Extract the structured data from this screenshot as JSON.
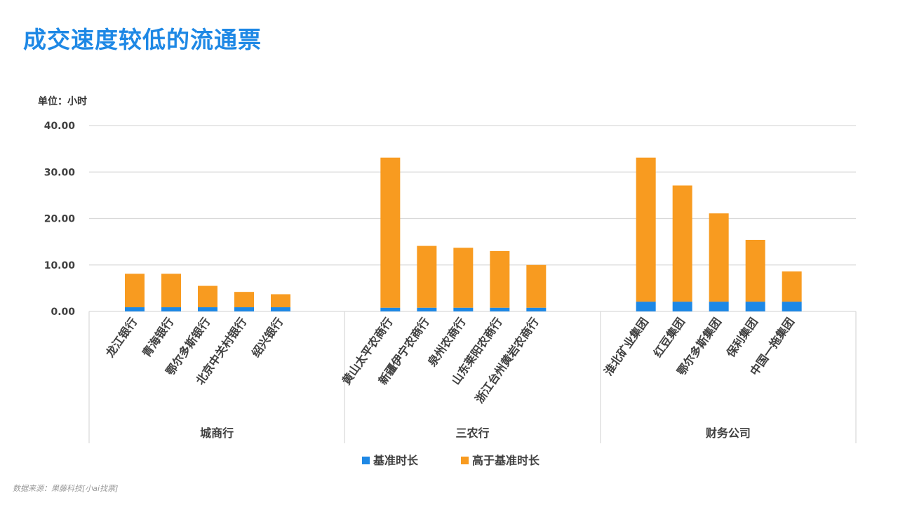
{
  "page": {
    "title": "成交速度较低的流通票",
    "unit_label": "单位：小时",
    "source_note": "数据来源：果藤科技[小ai找票]"
  },
  "colors": {
    "title": "#1e88e5",
    "base_series": "#1e88e5",
    "extra_series": "#f89b20",
    "grid": "#d9d9d9",
    "axis_text": "#404040"
  },
  "chart_data": {
    "type": "bar",
    "stacked": true,
    "ylim": [
      0,
      40
    ],
    "yticks": [
      "0.00",
      "10.00",
      "20.00",
      "30.00",
      "40.00"
    ],
    "ytick_values": [
      0,
      10,
      20,
      30,
      40
    ],
    "grid": true,
    "legend_position": "bottom",
    "groups": [
      {
        "name": "城商行",
        "categories": [
          "龙江银行",
          "青海银行",
          "鄂尔多斯银行",
          "北京中关村银行",
          "绍兴银行"
        ]
      },
      {
        "name": "三农行",
        "categories": [
          "黄山太平农商行",
          "新疆伊宁农商行",
          "泉州农商行",
          "山东莱阳农商行",
          "浙江台州黄岩农商行"
        ]
      },
      {
        "name": "财务公司",
        "categories": [
          "淮北矿业集团",
          "红豆集团",
          "鄂尔多斯集团",
          "保利集团",
          "中国一拖集团"
        ]
      }
    ],
    "series": [
      {
        "name": "基准时长",
        "values": [
          0.9,
          0.9,
          0.9,
          0.9,
          0.9,
          0.8,
          0.8,
          0.8,
          0.8,
          0.8,
          2.1,
          2.1,
          2.1,
          2.1,
          2.1
        ]
      },
      {
        "name": "高于基准时长",
        "values": [
          7.2,
          7.2,
          4.6,
          3.3,
          2.8,
          32.3,
          13.3,
          12.9,
          12.2,
          9.2,
          31.0,
          25.0,
          19.0,
          13.3,
          6.5
        ]
      }
    ]
  }
}
